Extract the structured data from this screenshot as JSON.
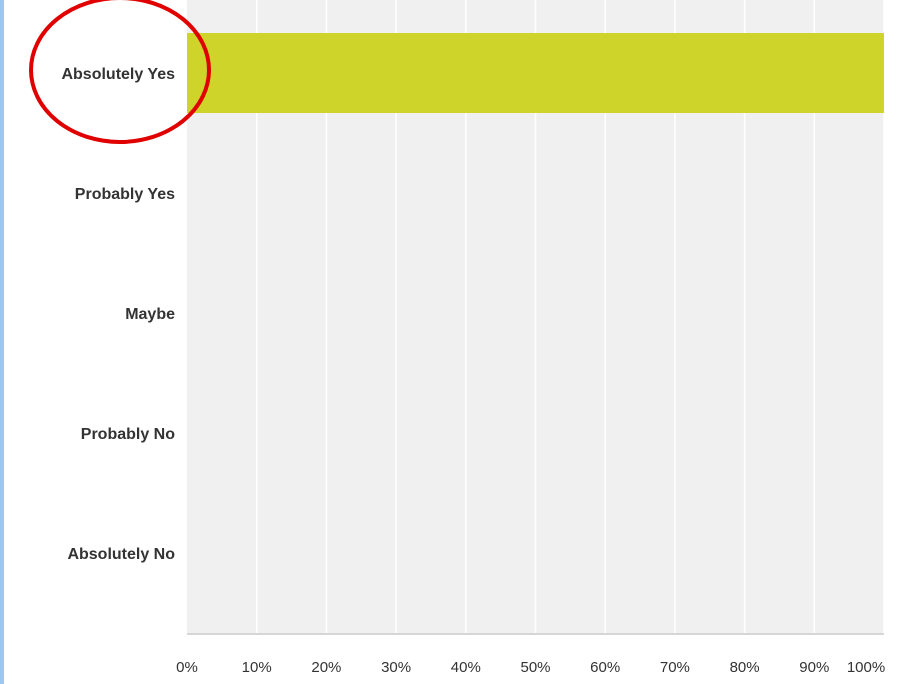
{
  "chart_data": {
    "type": "bar",
    "orientation": "horizontal",
    "categories": [
      "Absolutely Yes",
      "Probably Yes",
      "Maybe",
      "Probably No",
      "Absolutely No"
    ],
    "values": [
      100,
      0,
      0,
      0,
      0
    ],
    "xlim": [
      0,
      100
    ],
    "x_ticks": [
      "0%",
      "10%",
      "20%",
      "30%",
      "40%",
      "50%",
      "60%",
      "70%",
      "80%",
      "90%",
      "100%"
    ],
    "grid": true,
    "bar_color": "#cfd42a",
    "plot_background": "#f0f0f0",
    "highlight": {
      "shape": "ellipse",
      "target": "Absolutely Yes",
      "color": "#e00000"
    }
  },
  "frame": {
    "edge_color": "#9cc7f0"
  }
}
